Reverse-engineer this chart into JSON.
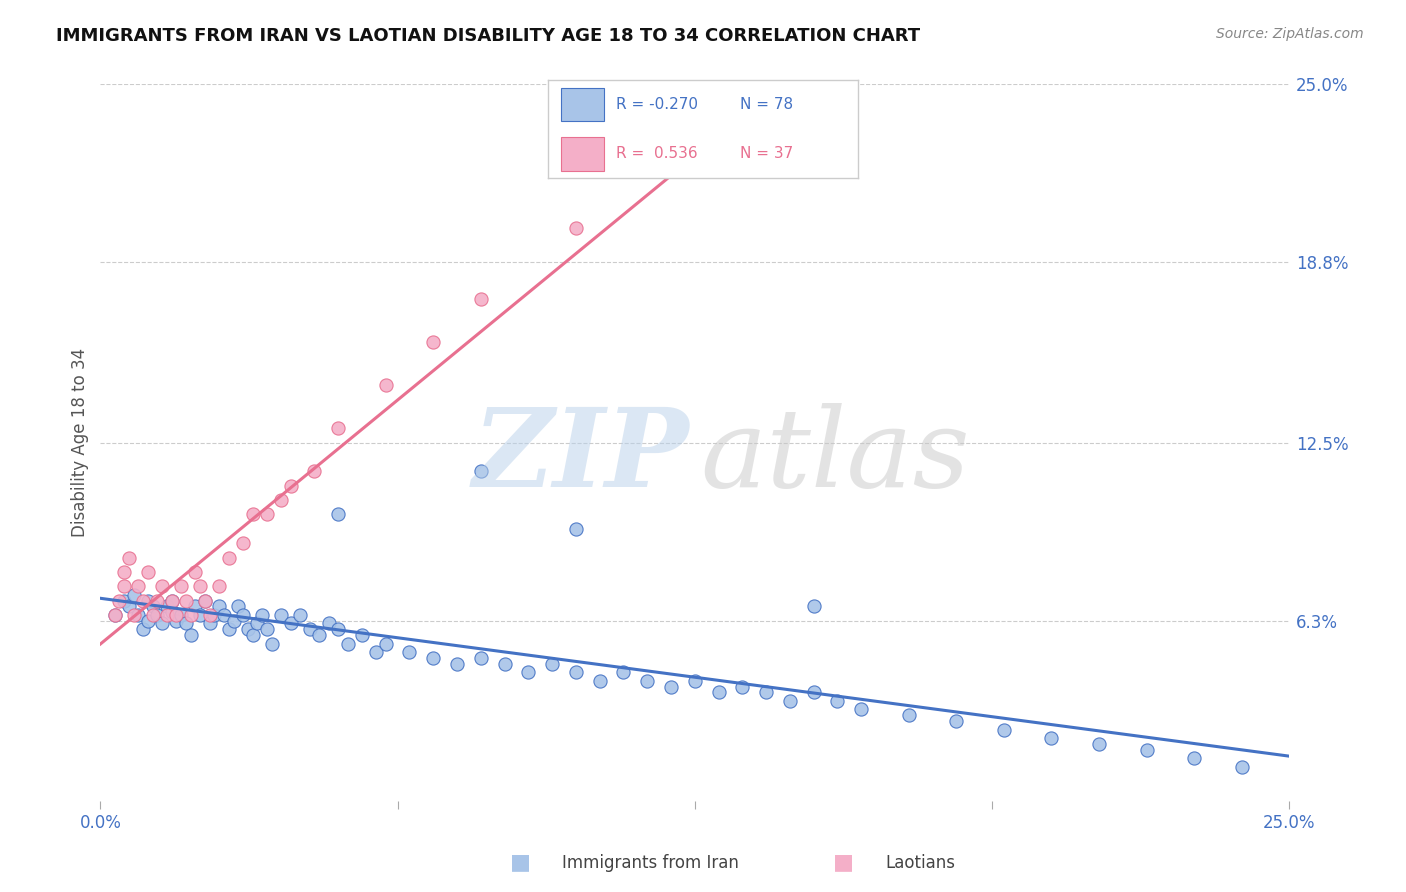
{
  "title": "IMMIGRANTS FROM IRAN VS LAOTIAN DISABILITY AGE 18 TO 34 CORRELATION CHART",
  "source": "Source: ZipAtlas.com",
  "ylabel": "Disability Age 18 to 34",
  "legend_label_1": "Immigrants from Iran",
  "legend_label_2": "Laotians",
  "r1": -0.27,
  "n1": 78,
  "r2": 0.536,
  "n2": 37,
  "color1": "#a8c4e8",
  "color2": "#f4afc8",
  "line_color1": "#4472c4",
  "line_color2": "#e87090",
  "xlim": [
    0.0,
    0.25
  ],
  "ylim": [
    0.0,
    0.25
  ],
  "ytick_positions": [
    0.063,
    0.125,
    0.188,
    0.25
  ],
  "ytick_labels": [
    "6.3%",
    "12.5%",
    "18.8%",
    "25.0%"
  ],
  "grid_color": "#cccccc",
  "background_color": "#ffffff",
  "blue_trend": [
    -0.1,
    0.075
  ],
  "pink_trend": [
    1.45,
    -0.01
  ],
  "scatter1_x": [
    0.003,
    0.005,
    0.006,
    0.007,
    0.008,
    0.009,
    0.01,
    0.01,
    0.011,
    0.012,
    0.013,
    0.014,
    0.015,
    0.015,
    0.016,
    0.017,
    0.018,
    0.019,
    0.02,
    0.021,
    0.022,
    0.023,
    0.024,
    0.025,
    0.026,
    0.027,
    0.028,
    0.029,
    0.03,
    0.031,
    0.032,
    0.033,
    0.034,
    0.035,
    0.036,
    0.038,
    0.04,
    0.042,
    0.044,
    0.046,
    0.048,
    0.05,
    0.052,
    0.055,
    0.058,
    0.06,
    0.065,
    0.07,
    0.075,
    0.08,
    0.085,
    0.09,
    0.095,
    0.1,
    0.105,
    0.11,
    0.115,
    0.12,
    0.125,
    0.13,
    0.135,
    0.14,
    0.145,
    0.15,
    0.155,
    0.16,
    0.17,
    0.18,
    0.19,
    0.2,
    0.21,
    0.22,
    0.23,
    0.24,
    0.1,
    0.05,
    0.08,
    0.15
  ],
  "scatter1_y": [
    0.065,
    0.07,
    0.068,
    0.072,
    0.065,
    0.06,
    0.063,
    0.07,
    0.068,
    0.065,
    0.062,
    0.068,
    0.066,
    0.07,
    0.063,
    0.065,
    0.062,
    0.058,
    0.068,
    0.065,
    0.07,
    0.062,
    0.065,
    0.068,
    0.065,
    0.06,
    0.063,
    0.068,
    0.065,
    0.06,
    0.058,
    0.062,
    0.065,
    0.06,
    0.055,
    0.065,
    0.062,
    0.065,
    0.06,
    0.058,
    0.062,
    0.06,
    0.055,
    0.058,
    0.052,
    0.055,
    0.052,
    0.05,
    0.048,
    0.05,
    0.048,
    0.045,
    0.048,
    0.045,
    0.042,
    0.045,
    0.042,
    0.04,
    0.042,
    0.038,
    0.04,
    0.038,
    0.035,
    0.038,
    0.035,
    0.032,
    0.03,
    0.028,
    0.025,
    0.022,
    0.02,
    0.018,
    0.015,
    0.012,
    0.095,
    0.1,
    0.115,
    0.068
  ],
  "scatter2_x": [
    0.003,
    0.004,
    0.005,
    0.005,
    0.006,
    0.007,
    0.008,
    0.009,
    0.01,
    0.011,
    0.012,
    0.013,
    0.014,
    0.015,
    0.016,
    0.017,
    0.018,
    0.019,
    0.02,
    0.021,
    0.022,
    0.023,
    0.025,
    0.027,
    0.03,
    0.032,
    0.035,
    0.038,
    0.04,
    0.045,
    0.05,
    0.06,
    0.07,
    0.08,
    0.1,
    0.12,
    0.15
  ],
  "scatter2_y": [
    0.065,
    0.07,
    0.075,
    0.08,
    0.085,
    0.065,
    0.075,
    0.07,
    0.08,
    0.065,
    0.07,
    0.075,
    0.065,
    0.07,
    0.065,
    0.075,
    0.07,
    0.065,
    0.08,
    0.075,
    0.07,
    0.065,
    0.075,
    0.085,
    0.09,
    0.1,
    0.1,
    0.105,
    0.11,
    0.115,
    0.13,
    0.145,
    0.16,
    0.175,
    0.2,
    0.22,
    0.25
  ]
}
